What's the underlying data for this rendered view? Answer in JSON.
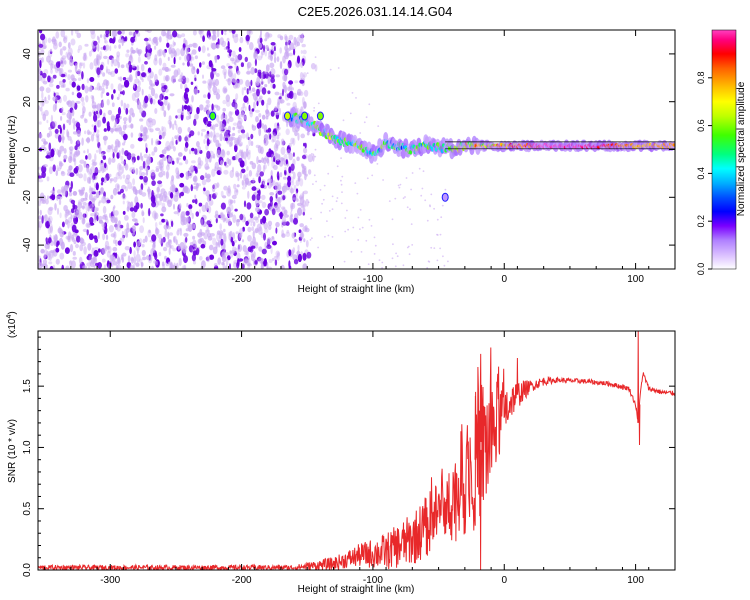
{
  "figure_title": "C2E5.2026.031.14.14.G04",
  "colors": {
    "snr_line": "#e8282a",
    "scatter_dark": "#6a00e0",
    "scatter_light": "#c9a8f2",
    "background": "#ffffff",
    "axis": "#000000"
  },
  "chart_data": [
    {
      "type": "heatmap",
      "title": "",
      "xlabel": "Height of straight line (km)",
      "ylabel": "Frequency (Hz)",
      "xlim": [
        -355,
        130
      ],
      "ylim": [
        -50,
        50
      ],
      "x_ticks": [
        -300,
        -200,
        -100,
        0,
        100
      ],
      "y_ticks": [
        -40,
        -20,
        0,
        20,
        40
      ],
      "x_tick_labels": [
        "-300",
        "-200",
        "-100",
        "0",
        "100"
      ],
      "y_tick_labels": [
        "-40",
        "-20",
        "0",
        "20",
        "40"
      ],
      "colorbar": {
        "label": "Normalized spectral amplitude",
        "range": [
          0,
          1
        ],
        "ticks": [
          0.0,
          0.2,
          0.4,
          0.6,
          0.8
        ],
        "tick_labels": [
          "0.0",
          "0.2",
          "0.4",
          "0.6",
          "0.8"
        ],
        "colormap": [
          "#ffffff",
          "#e0c8ff",
          "#b080ff",
          "#7a00ff",
          "#0000ff",
          "#00a0ff",
          "#00ffff",
          "#00ff80",
          "#40ff00",
          "#c0ff00",
          "#ffff00",
          "#ffc000",
          "#ff6000",
          "#ff0000",
          "#ff0080",
          "#ff40c0"
        ]
      },
      "trend": [
        {
          "x": -165,
          "y": 14,
          "a": 0.45
        },
        {
          "x": -150,
          "y": 12,
          "a": 0.45
        },
        {
          "x": -140,
          "y": 8,
          "a": 0.5
        },
        {
          "x": -130,
          "y": 5,
          "a": 0.55
        },
        {
          "x": -120,
          "y": 3,
          "a": 0.5
        },
        {
          "x": -110,
          "y": 1,
          "a": 0.45
        },
        {
          "x": -100,
          "y": -2,
          "a": 0.45
        },
        {
          "x": -90,
          "y": 3,
          "a": 0.45
        },
        {
          "x": -80,
          "y": 1,
          "a": 0.45
        },
        {
          "x": -70,
          "y": 0,
          "a": 0.45
        },
        {
          "x": -60,
          "y": 2,
          "a": 0.45
        },
        {
          "x": -50,
          "y": 1,
          "a": 0.45
        },
        {
          "x": -40,
          "y": 0.5,
          "a": 0.55
        },
        {
          "x": -30,
          "y": 1,
          "a": 0.65
        },
        {
          "x": -20,
          "y": 1.5,
          "a": 0.7
        },
        {
          "x": -10,
          "y": 1.5,
          "a": 0.7
        },
        {
          "x": 0,
          "y": 1.5,
          "a": 0.75
        },
        {
          "x": 30,
          "y": 1.5,
          "a": 1.0
        },
        {
          "x": 60,
          "y": 1.5,
          "a": 1.0
        },
        {
          "x": 80,
          "y": 1.5,
          "a": 0.9
        },
        {
          "x": 100,
          "y": 1.5,
          "a": 0.75
        },
        {
          "x": 130,
          "y": 1.5,
          "a": 0.8
        }
      ],
      "isolated_peaks": [
        {
          "x": -222,
          "y": 14,
          "a": 0.55
        },
        {
          "x": -165,
          "y": 14,
          "a": 0.65
        },
        {
          "x": -152,
          "y": 14,
          "a": 0.6
        },
        {
          "x": -140,
          "y": 14,
          "a": 0.6
        },
        {
          "x": -45,
          "y": -20,
          "a": 0.1
        }
      ]
    },
    {
      "type": "line",
      "title": "",
      "xlabel": "Height of straight line (km)",
      "ylabel": "SNR (10 * v/v)",
      "scale_label_prefix": "(x10",
      "scale_label_exp": "4",
      "scale_label_suffix": ")",
      "xlim": [
        -355,
        130
      ],
      "ylim": [
        0,
        1.95
      ],
      "x_ticks": [
        -300,
        -200,
        -100,
        0,
        100
      ],
      "y_ticks": [
        0.0,
        0.5,
        1.0,
        1.5
      ],
      "x_tick_labels": [
        "-300",
        "-200",
        "-100",
        "0",
        "100"
      ],
      "y_tick_labels": [
        "0.0",
        "0.5",
        "1.0",
        "1.5"
      ],
      "series": [
        {
          "name": "SNR",
          "envelope_x": [
            -355,
            -160,
            -130,
            -110,
            -90,
            -70,
            -55,
            -45,
            -35,
            -28,
            -22,
            -18,
            -12,
            -5,
            0,
            5,
            10,
            20,
            30,
            40,
            60,
            80,
            95,
            100,
            102,
            104,
            106,
            110,
            120,
            130
          ],
          "envelope_y": [
            0.02,
            0.02,
            0.05,
            0.12,
            0.15,
            0.25,
            0.4,
            0.5,
            0.65,
            0.8,
            0.9,
            0.98,
            1.05,
            1.2,
            1.3,
            1.38,
            1.43,
            1.5,
            1.54,
            1.55,
            1.54,
            1.52,
            1.48,
            1.35,
            1.2,
            1.5,
            1.6,
            1.48,
            1.45,
            1.44
          ],
          "noise_x": [
            -355,
            -160,
            -120,
            -90,
            -60,
            -40,
            -25,
            -15,
            -5,
            5,
            20,
            40,
            130
          ],
          "noise_amp": [
            0.02,
            0.02,
            0.07,
            0.15,
            0.25,
            0.35,
            0.55,
            0.6,
            0.35,
            0.15,
            0.05,
            0.02,
            0.02
          ],
          "spikes": [
            {
              "x": 102,
              "y": 1.95
            },
            {
              "x": 103,
              "y": 1.02
            },
            {
              "x": 106,
              "y": 1.6
            },
            {
              "x": 10,
              "y": 1.73
            },
            {
              "x": -22,
              "y": 1.42
            },
            {
              "x": -18,
              "y": 0.0
            }
          ]
        }
      ]
    }
  ]
}
